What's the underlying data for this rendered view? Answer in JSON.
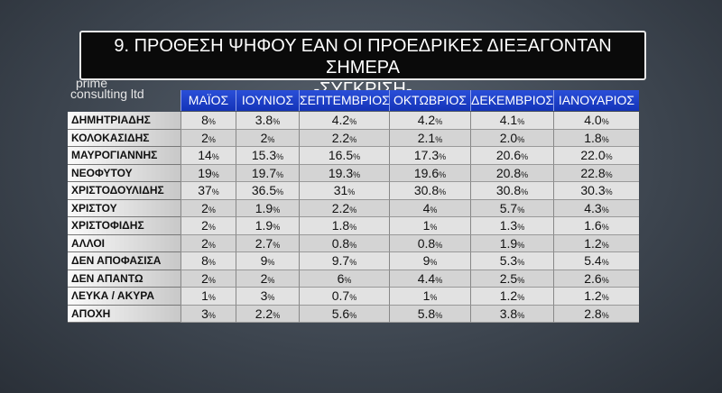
{
  "header": {
    "title": "9. ΠΡΟΘΕΣΗ ΨΗΦΟΥ ΕΑΝ ΟΙ ΠΡΟΕΔΡΙΚΕΣ ΔΙΕΞΑΓΟΝΤΑΝ ΣΗΜΕΡΑ",
    "subtitle": "-ΣΥΓΚΡΙΣΗ-"
  },
  "logo": {
    "line1": "prime",
    "line2": "consulting ltd"
  },
  "table": {
    "columns": [
      "ΜΑΪΟΣ",
      "ΙΟΥΝΙΟΣ",
      "ΣΕΠΤΕΜΒΡΙΟΣ",
      "ΟΚΤΩΒΡΙΟΣ",
      "ΔΕΚΕΜΒΡΙΟΣ",
      "ΙΑΝΟΥΑΡΙΟΣ"
    ],
    "rows": [
      [
        "ΔΗΜΗΤΡΙΑΔΗΣ",
        "8%",
        "3.8%",
        "4.2%",
        "4.2%",
        "4.1%",
        "4.0%"
      ],
      [
        "ΚΟΛΟΚΑΣΙΔΗΣ",
        "2%",
        "2%",
        "2.2%",
        "2.1%",
        "2.0%",
        "1.8%"
      ],
      [
        "ΜΑΥΡΟΓΙΑΝΝΗΣ",
        "14%",
        "15.3%",
        "16.5%",
        "17.3%",
        "20.6%",
        "22.0%"
      ],
      [
        "ΝΕΟΦΥΤΟΥ",
        "19%",
        "19.7%",
        "19.3%",
        "19.6%",
        "20.8%",
        "22.8%"
      ],
      [
        "ΧΡΙΣΤΟΔΟΥΛΙΔΗΣ",
        "37%",
        "36.5%",
        "31%",
        "30.8%",
        "30.8%",
        "30.3%"
      ],
      [
        "ΧΡΙΣΤΟΥ",
        "2%",
        "1.9%",
        "2.2%",
        "4%",
        "5.7%",
        "4.3%"
      ],
      [
        "ΧΡΙΣΤΟΦΙΔΗΣ",
        "2%",
        "1.9%",
        "1.8%",
        "1%",
        "1.3%",
        "1.6%"
      ],
      [
        "ΑΛΛΟΙ",
        "2%",
        "2.7%",
        "0.8%",
        "0.8%",
        "1.9%",
        "1.2%"
      ],
      [
        "ΔΕΝ ΑΠΟΦΑΣΙΣΑ",
        "8%",
        "9%",
        "9.7%",
        "9%",
        "5.3%",
        "5.4%"
      ],
      [
        "ΔΕΝ ΑΠΑΝΤΩ",
        "2%",
        "2%",
        "6%",
        "4.4%",
        "2.5%",
        "2.6%"
      ],
      [
        "ΛΕΥΚΑ / ΑΚΥΡΑ",
        "1%",
        "3%",
        "0.7%",
        "1%",
        "1.2%",
        "1.2%"
      ],
      [
        "ΑΠΟΧΗ",
        "3%",
        "2.2%",
        "5.6%",
        "5.8%",
        "3.8%",
        "2.8%"
      ]
    ]
  }
}
